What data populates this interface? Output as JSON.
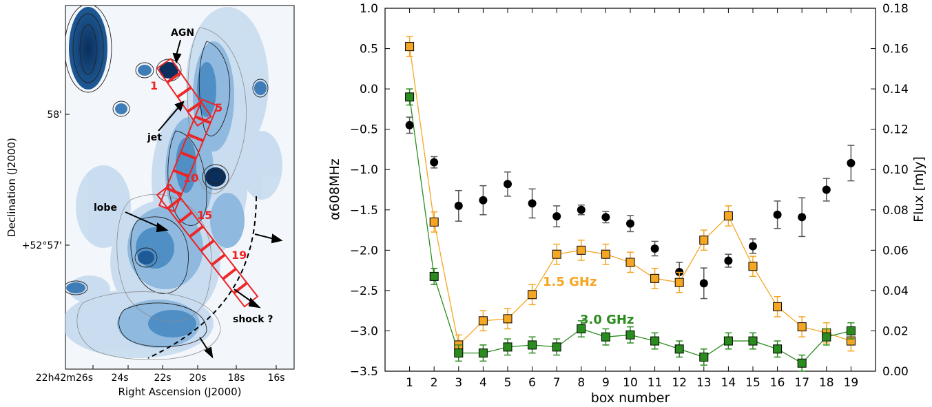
{
  "map": {
    "xlabel": "Right Ascension (J2000)",
    "ylabel": "Declination (J2000)",
    "xticks": [
      "22h42m26s",
      "24s",
      "22s",
      "20s",
      "18s",
      "16s"
    ],
    "yticks": [
      "58'",
      "+52°57'"
    ],
    "annotations": {
      "agn": "AGN",
      "jet": "jet",
      "lobe": "lobe",
      "shock": "shock ?"
    },
    "box_labels": [
      "1",
      "5",
      "10",
      "15",
      "19"
    ],
    "colors": {
      "background": "#f3f7fb",
      "emission": "#3b7fb8",
      "boxes": "#ee2222"
    }
  },
  "chart_data": {
    "type": "scatter",
    "xlabel": "box number",
    "ylabel": "α608MHz",
    "ylabel_right": "Flux [mJy]",
    "x": [
      1,
      2,
      3,
      4,
      5,
      6,
      7,
      8,
      9,
      10,
      11,
      12,
      13,
      14,
      15,
      16,
      17,
      18,
      19
    ],
    "xlim": [
      0,
      20
    ],
    "ylim": [
      -3.5,
      1.0
    ],
    "ylim_right": [
      0.0,
      0.18
    ],
    "yticks": [
      "1.0",
      "0.5",
      "0.0",
      "−0.5",
      "−1.0",
      "−1.5",
      "−2.0",
      "−2.5",
      "−3.0",
      "−3.5"
    ],
    "yticks_right": [
      "0.18",
      "0.16",
      "0.14",
      "0.12",
      "0.10",
      "0.08",
      "0.06",
      "0.04",
      "0.02",
      "0.00"
    ],
    "series": [
      {
        "marker": "circle",
        "color": "#000000",
        "axis": "left",
        "values": [
          -0.45,
          -0.91,
          -1.45,
          -1.38,
          -1.18,
          -1.42,
          -1.58,
          -1.5,
          -1.59,
          -1.67,
          -1.98,
          -2.27,
          -2.41,
          -2.13,
          -1.95,
          -1.56,
          -1.59,
          -1.25,
          -0.92
        ],
        "errors": [
          0.1,
          0.07,
          0.19,
          0.18,
          0.15,
          0.18,
          0.13,
          0.06,
          0.07,
          0.1,
          0.09,
          0.12,
          0.19,
          0.08,
          0.09,
          0.17,
          0.24,
          0.14,
          0.22
        ]
      },
      {
        "name": "1.5 GHz",
        "marker": "square",
        "color": "#f5a623",
        "axis": "right",
        "values": [
          0.161,
          0.074,
          0.013,
          0.025,
          0.026,
          0.038,
          0.058,
          0.06,
          0.058,
          0.054,
          0.046,
          0.044,
          0.065,
          0.077,
          0.052,
          0.032,
          0.022,
          0.019,
          0.015
        ],
        "errors": [
          0.005,
          0.005,
          0.005,
          0.005,
          0.005,
          0.005,
          0.005,
          0.005,
          0.005,
          0.005,
          0.005,
          0.005,
          0.005,
          0.005,
          0.005,
          0.005,
          0.005,
          0.005,
          0.005
        ]
      },
      {
        "name": "3.0 GHz",
        "marker": "square",
        "color": "#2a8c1e",
        "axis": "right",
        "values": [
          0.136,
          0.047,
          0.009,
          0.009,
          0.012,
          0.013,
          0.012,
          0.021,
          0.017,
          0.018,
          0.015,
          0.011,
          0.007,
          0.015,
          0.015,
          0.011,
          0.004,
          0.017,
          0.02
        ],
        "errors": [
          0.004,
          0.004,
          0.004,
          0.004,
          0.004,
          0.004,
          0.004,
          0.004,
          0.004,
          0.004,
          0.004,
          0.004,
          0.004,
          0.004,
          0.004,
          0.004,
          0.004,
          0.004,
          0.004
        ]
      }
    ]
  }
}
